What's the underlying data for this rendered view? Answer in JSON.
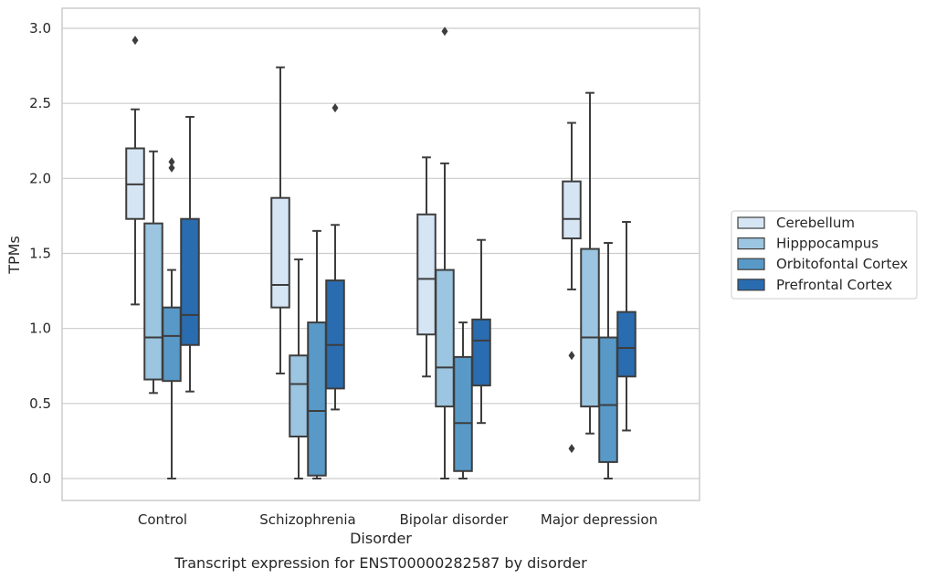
{
  "chart_data": {
    "type": "box",
    "xlabel": "Disorder",
    "ylabel": "TPMs",
    "caption": "Transcript expression for ENST00000282587 by disorder",
    "ylim": [
      -0.14,
      3.14
    ],
    "yticks": [
      "0.0",
      "0.5",
      "1.0",
      "1.5",
      "2.0",
      "2.5",
      "3.0"
    ],
    "grid": true,
    "legend_position": "outside right",
    "categories": [
      "Control",
      "Schizophrenia",
      "Bipolar disorder",
      "Major depression"
    ],
    "series": [
      {
        "name": "Cerebellum",
        "color": "#d5e5f4",
        "boxes": [
          {
            "category": "Control",
            "whisker_low": 1.16,
            "q1": 1.73,
            "median": 1.96,
            "q3": 2.2,
            "whisker_high": 2.46,
            "outliers": [
              2.92
            ]
          },
          {
            "category": "Schizophrenia",
            "whisker_low": 0.7,
            "q1": 1.14,
            "median": 1.29,
            "q3": 1.87,
            "whisker_high": 2.74,
            "outliers": []
          },
          {
            "category": "Bipolar disorder",
            "whisker_low": 0.68,
            "q1": 0.96,
            "median": 1.33,
            "q3": 1.76,
            "whisker_high": 2.14,
            "outliers": []
          },
          {
            "category": "Major depression",
            "whisker_low": 1.26,
            "q1": 1.6,
            "median": 1.73,
            "q3": 1.98,
            "whisker_high": 2.37,
            "outliers": [
              0.82,
              0.2
            ]
          }
        ]
      },
      {
        "name": "Hipppocampus",
        "color": "#9bc5e0",
        "boxes": [
          {
            "category": "Control",
            "whisker_low": 0.57,
            "q1": 0.66,
            "median": 0.94,
            "q3": 1.7,
            "whisker_high": 2.18,
            "outliers": []
          },
          {
            "category": "Schizophrenia",
            "whisker_low": 0.0,
            "q1": 0.28,
            "median": 0.63,
            "q3": 0.82,
            "whisker_high": 1.46,
            "outliers": []
          },
          {
            "category": "Bipolar disorder",
            "whisker_low": 0.0,
            "q1": 0.48,
            "median": 0.74,
            "q3": 1.39,
            "whisker_high": 2.1,
            "outliers": [
              2.98
            ]
          },
          {
            "category": "Major depression",
            "whisker_low": 0.3,
            "q1": 0.48,
            "median": 0.94,
            "q3": 1.53,
            "whisker_high": 2.57,
            "outliers": []
          }
        ]
      },
      {
        "name": "Orbitofontal Cortex",
        "color": "#5899c8",
        "boxes": [
          {
            "category": "Control",
            "whisker_low": 0.0,
            "q1": 0.65,
            "median": 0.95,
            "q3": 1.14,
            "whisker_high": 1.39,
            "outliers": [
              2.07,
              2.11
            ]
          },
          {
            "category": "Schizophrenia",
            "whisker_low": 0.0,
            "q1": 0.02,
            "median": 0.45,
            "q3": 1.04,
            "whisker_high": 1.65,
            "outliers": []
          },
          {
            "category": "Bipolar disorder",
            "whisker_low": 0.0,
            "q1": 0.05,
            "median": 0.37,
            "q3": 0.81,
            "whisker_high": 1.04,
            "outliers": []
          },
          {
            "category": "Major depression",
            "whisker_low": 0.0,
            "q1": 0.11,
            "median": 0.49,
            "q3": 0.94,
            "whisker_high": 1.57,
            "outliers": []
          }
        ]
      },
      {
        "name": "Prefrontal Cortex",
        "color": "#2a6cb0",
        "boxes": [
          {
            "category": "Control",
            "whisker_low": 0.58,
            "q1": 0.89,
            "median": 1.09,
            "q3": 1.73,
            "whisker_high": 2.41,
            "outliers": []
          },
          {
            "category": "Schizophrenia",
            "whisker_low": 0.46,
            "q1": 0.6,
            "median": 0.89,
            "q3": 1.32,
            "whisker_high": 1.69,
            "outliers": [
              2.47
            ]
          },
          {
            "category": "Bipolar disorder",
            "whisker_low": 0.37,
            "q1": 0.62,
            "median": 0.92,
            "q3": 1.06,
            "whisker_high": 1.59,
            "outliers": []
          },
          {
            "category": "Major depression",
            "whisker_low": 0.32,
            "q1": 0.68,
            "median": 0.87,
            "q3": 1.11,
            "whisker_high": 1.71,
            "outliers": []
          }
        ]
      }
    ]
  },
  "styles": {
    "box_edge_color": "#3d3d3d",
    "grid_color": "#cccccc",
    "frame_color": "#cccccc"
  }
}
